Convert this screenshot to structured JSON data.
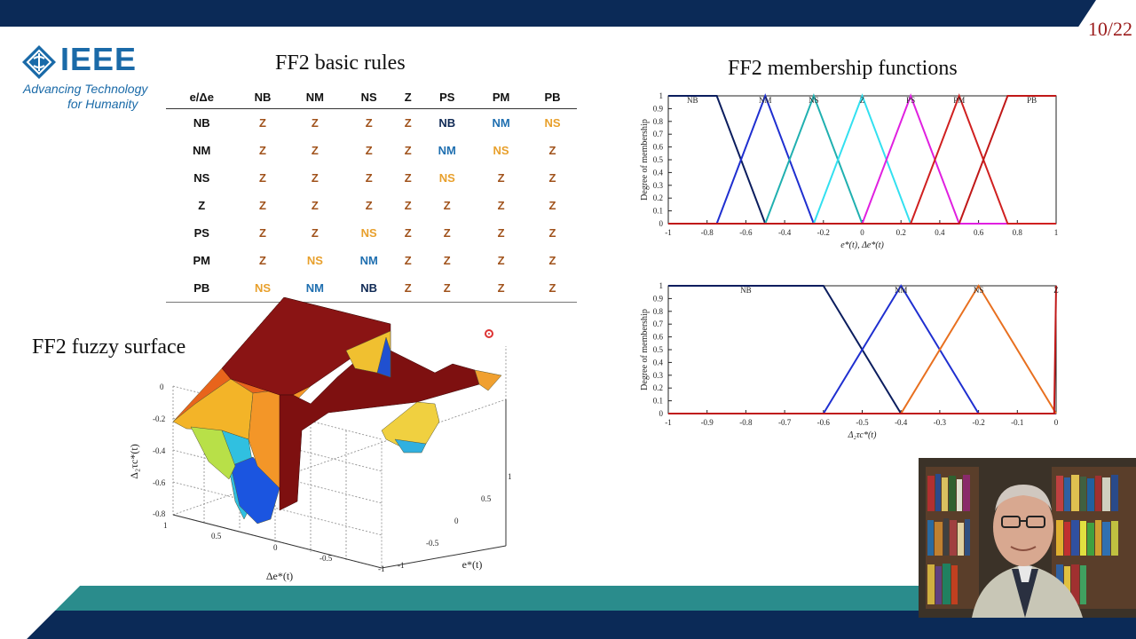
{
  "slide": {
    "number": "10/22"
  },
  "logo": {
    "wordmark": "IEEE",
    "tagline_line1": "Advancing Technology",
    "tagline_line2": "for Humanity",
    "icon": "ieee-diamond-icon"
  },
  "rules": {
    "title": "FF2 basic rules",
    "corner_label": "e/Δe",
    "columns": [
      "NB",
      "NM",
      "NS",
      "Z",
      "PS",
      "PM",
      "PB"
    ],
    "rows": [
      {
        "label": "NB",
        "cells": [
          "Z",
          "Z",
          "Z",
          "Z",
          "NB",
          "NM",
          "NS"
        ]
      },
      {
        "label": "NM",
        "cells": [
          "Z",
          "Z",
          "Z",
          "Z",
          "NM",
          "NS",
          "Z"
        ]
      },
      {
        "label": "NS",
        "cells": [
          "Z",
          "Z",
          "Z",
          "Z",
          "NS",
          "Z",
          "Z"
        ]
      },
      {
        "label": "Z",
        "cells": [
          "Z",
          "Z",
          "Z",
          "Z",
          "Z",
          "Z",
          "Z"
        ]
      },
      {
        "label": "PS",
        "cells": [
          "Z",
          "Z",
          "NS",
          "Z",
          "Z",
          "Z",
          "Z"
        ]
      },
      {
        "label": "PM",
        "cells": [
          "Z",
          "NS",
          "NM",
          "Z",
          "Z",
          "Z",
          "Z"
        ]
      },
      {
        "label": "PB",
        "cells": [
          "NS",
          "NM",
          "NB",
          "Z",
          "Z",
          "Z",
          "Z"
        ]
      }
    ],
    "colors": {
      "Z": "#a0521b",
      "NS": "#e8a02c",
      "NM": "#1f6fb0",
      "NB": "#102a55"
    }
  },
  "surface": {
    "title": "FF2 fuzzy surface",
    "z_label": "Δ₂τc*(t)",
    "x_label": "Δe*(t)",
    "y_label": "e*(t)",
    "z_ticks": [
      "0",
      "-0.2",
      "-0.4",
      "-0.6",
      "-0.8"
    ],
    "x_ticks": [
      "1",
      "0.5",
      "0",
      "-0.5",
      "-1"
    ],
    "y_ticks": [
      "1",
      "0.5",
      "0",
      "-0.5",
      "-1"
    ]
  },
  "mf_title": "FF2 membership functions",
  "chart_data": [
    {
      "type": "line",
      "title": "",
      "xlabel": "e*(t), Δe*(t)",
      "ylabel": "Degree of membership",
      "xlim": [
        -1,
        1
      ],
      "ylim": [
        0,
        1
      ],
      "xticks": [
        -1,
        -0.8,
        -0.6,
        -0.4,
        -0.2,
        0,
        0.2,
        0.4,
        0.6,
        0.8,
        1
      ],
      "yticks": [
        0,
        0.1,
        0.2,
        0.3,
        0.4,
        0.5,
        0.6,
        0.7,
        0.8,
        0.9,
        1
      ],
      "series": [
        {
          "name": "NB",
          "color": "#0b1d5e",
          "x": [
            -1,
            -0.75,
            -0.5,
            1
          ],
          "y": [
            1,
            1,
            0,
            0
          ]
        },
        {
          "name": "NM",
          "color": "#1f2fd0",
          "x": [
            -1,
            -0.75,
            -0.5,
            -0.25,
            1
          ],
          "y": [
            0,
            0,
            1,
            0,
            0
          ]
        },
        {
          "name": "NS",
          "color": "#20b0b0",
          "x": [
            -1,
            -0.5,
            -0.25,
            0,
            1
          ],
          "y": [
            0,
            0,
            1,
            0,
            0
          ]
        },
        {
          "name": "Z",
          "color": "#33e0f0",
          "x": [
            -1,
            -0.25,
            0,
            0.25,
            1
          ],
          "y": [
            0,
            0,
            1,
            0,
            0
          ]
        },
        {
          "name": "PS",
          "color": "#e020e0",
          "x": [
            -1,
            0,
            0.25,
            0.5,
            1
          ],
          "y": [
            0,
            0,
            1,
            0,
            0
          ]
        },
        {
          "name": "PM",
          "color": "#d02020",
          "x": [
            -1,
            0.25,
            0.5,
            0.75,
            1
          ],
          "y": [
            0,
            0,
            1,
            0,
            0
          ]
        },
        {
          "name": "PB",
          "color": "#c01818",
          "x": [
            -1,
            0.5,
            0.75,
            1
          ],
          "y": [
            0,
            0,
            1,
            1
          ]
        }
      ]
    },
    {
      "type": "line",
      "title": "",
      "xlabel": "Δ₂τc*(t)",
      "ylabel": "Degree of membership",
      "xlim": [
        -1,
        0
      ],
      "ylim": [
        0,
        1
      ],
      "xticks": [
        -1,
        -0.9,
        -0.8,
        -0.7,
        -0.6,
        -0.5,
        -0.4,
        -0.3,
        -0.2,
        -0.1,
        0
      ],
      "yticks": [
        0,
        0.1,
        0.2,
        0.3,
        0.4,
        0.5,
        0.6,
        0.7,
        0.8,
        0.9,
        1
      ],
      "series": [
        {
          "name": "NB",
          "color": "#0b1d5e",
          "x": [
            -1,
            -0.6,
            -0.4,
            0
          ],
          "y": [
            1,
            1,
            0,
            0
          ]
        },
        {
          "name": "NM",
          "color": "#1f2fd0",
          "x": [
            -1,
            -0.6,
            -0.4,
            -0.2,
            0
          ],
          "y": [
            0,
            0,
            1,
            0,
            0
          ]
        },
        {
          "name": "NS",
          "color": "#e87020",
          "x": [
            -1,
            -0.4,
            -0.2,
            0
          ],
          "y": [
            0,
            0,
            1,
            0
          ]
        },
        {
          "name": "Z",
          "color": "#c01818",
          "x": [
            -1,
            -0.005,
            0
          ],
          "y": [
            0,
            0,
            1
          ]
        }
      ]
    }
  ]
}
